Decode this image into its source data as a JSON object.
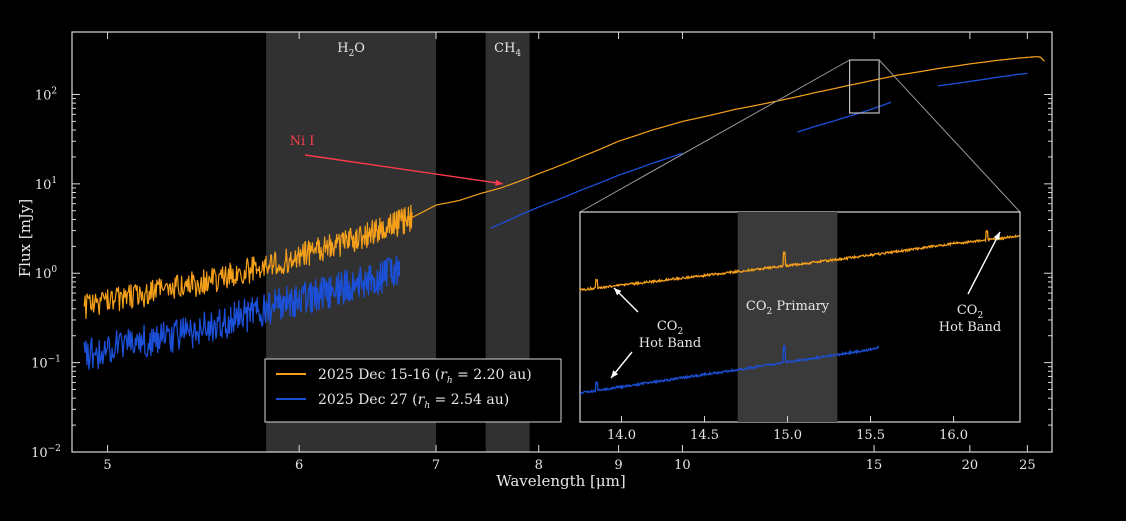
{
  "chart_data": {
    "type": "line",
    "title": "",
    "xlabel": "Wavelength [μm]",
    "ylabel": "Flux [mJy]",
    "x_scale": "reciprocal",
    "y_scale": "log",
    "xlim": [
      4.85,
      28.0
    ],
    "ylim": [
      0.01,
      500
    ],
    "x_ticks": [
      5,
      6,
      7,
      8,
      9,
      10,
      15,
      20,
      25
    ],
    "y_ticks": [
      {
        "value": 0.01,
        "base": "10",
        "exp": "−2"
      },
      {
        "value": 0.1,
        "base": "10",
        "exp": "−1"
      },
      {
        "value": 1,
        "base": "10",
        "exp": "0"
      },
      {
        "value": 10,
        "base": "10",
        "exp": "1"
      },
      {
        "value": 100,
        "base": "10",
        "exp": "2"
      }
    ],
    "bands": [
      {
        "x0": 5.8,
        "x1": 7.0,
        "label_main": "H",
        "label_sub": "2",
        "label_tail": "O"
      },
      {
        "x0": 7.45,
        "x1": 7.9,
        "label_main": "CH",
        "label_sub": "4",
        "label_tail": ""
      }
    ],
    "series": [
      {
        "name": "2025 Dec 15-16",
        "legend_param": "r",
        "legend_param_sub": "h",
        "legend_value": " = 2.20 au",
        "color": "#f5a01a",
        "x": [
          4.9,
          5.0,
          5.2,
          5.4,
          5.6,
          5.8,
          6.0,
          6.2,
          6.4,
          6.6,
          6.8,
          7.0,
          7.2,
          7.4,
          7.6,
          7.8,
          8.0,
          8.5,
          9.0,
          9.5,
          10.0,
          11.0,
          12.0,
          13.0,
          14.0,
          15.0,
          16.0,
          18.0,
          20.0,
          22.0,
          24.0,
          25.0,
          26.0,
          26.5,
          27.0
        ],
        "y": [
          0.42,
          0.48,
          0.6,
          0.75,
          0.95,
          1.2,
          1.55,
          2.0,
          2.5,
          3.2,
          4.2,
          5.8,
          6.5,
          7.8,
          9.0,
          10.8,
          13.0,
          20.0,
          30.0,
          40.0,
          50.0,
          68.0,
          85.0,
          105.0,
          125.0,
          145.0,
          165.0,
          195.0,
          220.0,
          240.0,
          255.0,
          260.0,
          265.0,
          262.0,
          235.0
        ]
      },
      {
        "name": "2025 Dec 27",
        "legend_param": "r",
        "legend_param_sub": "h",
        "legend_value": " = 2.54 au",
        "color": "#1a4fd6",
        "segments": [
          {
            "x": [
              4.9,
              5.0,
              5.2,
              5.4,
              5.6,
              5.8,
              6.0,
              6.2,
              6.4,
              6.6,
              6.7
            ],
            "y": [
              0.12,
              0.14,
              0.18,
              0.22,
              0.3,
              0.4,
              0.5,
              0.62,
              0.78,
              0.95,
              1.1
            ]
          },
          {
            "x": [
              7.5,
              7.8,
              8.0,
              8.5,
              9.0,
              9.5,
              10.0
            ],
            "y": [
              3.2,
              4.5,
              5.5,
              8.5,
              12.5,
              17.0,
              22.0
            ]
          },
          {
            "x": [
              12.5,
              13.0,
              14.0,
              15.0,
              15.7
            ],
            "y": [
              38.0,
              44.0,
              56.0,
              70.0,
              82.0
            ]
          },
          {
            "x": [
              18.0,
              20.0,
              22.0,
              24.0,
              25.0
            ],
            "y": [
              125.0,
              140.0,
              155.0,
              168.0,
              172.0
            ]
          }
        ]
      }
    ],
    "annotations": [
      {
        "text": "Ni I",
        "x": 7.6,
        "y": 9.5,
        "color": "#ff3b4a"
      }
    ],
    "legend_position": "lower-center",
    "inset": {
      "xlim": [
        13.75,
        16.4
      ],
      "x_ticks": [
        14.0,
        14.5,
        15.0,
        15.5,
        16.0
      ],
      "x_tick_labels": [
        "14.0",
        "14.5",
        "15.0",
        "15.5",
        "16.0"
      ],
      "zoom_region": {
        "x0": 14.1,
        "x1": 15.2
      },
      "band": {
        "x0": 14.7,
        "x1": 15.3,
        "label_main": "CO",
        "label_sub": "2",
        "label_tail": " Primary"
      },
      "orange_line": {
        "x": [
          13.75,
          14.5,
          15.0,
          15.5,
          16.0,
          16.4
        ],
        "y": [
          0.0,
          0.25,
          0.42,
          0.6,
          0.8,
          0.93
        ]
      },
      "blue_line": {
        "x": [
          13.75,
          14.5,
          15.0,
          15.5,
          15.55
        ],
        "y": [
          0.0,
          0.35,
          0.58,
          0.82,
          0.86
        ]
      },
      "labels": [
        {
          "main": "CO",
          "sub": "2",
          "line2": "Hot Band"
        },
        {
          "main": "CO",
          "sub": "2",
          "line2": "Hot Band"
        }
      ]
    }
  }
}
